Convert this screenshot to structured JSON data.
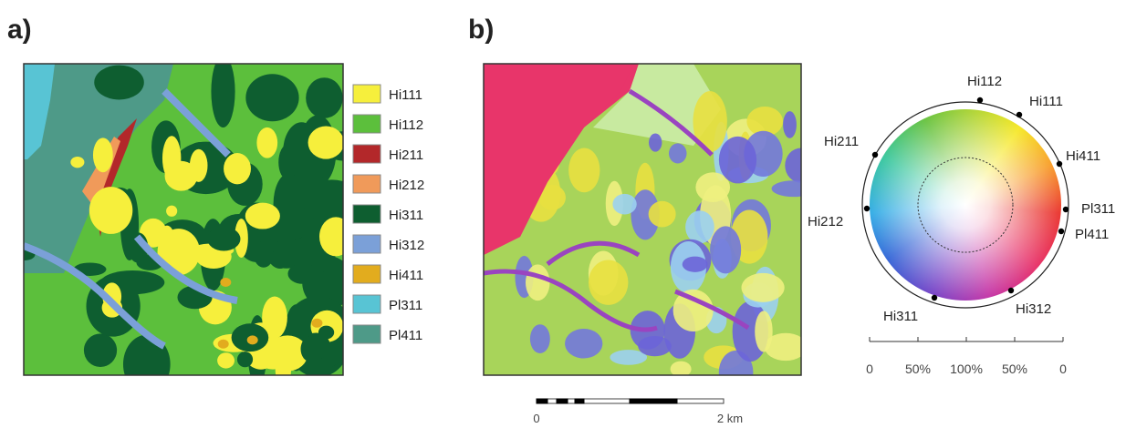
{
  "panels": [
    {
      "label": "a)"
    },
    {
      "label": "b)"
    }
  ],
  "legend": [
    {
      "name": "Hi111",
      "color": "#f6ef3c"
    },
    {
      "name": "Hi112",
      "color": "#5cbf3c"
    },
    {
      "name": "Hi211",
      "color": "#b3282a"
    },
    {
      "name": "Hi212",
      "color": "#f09a5a"
    },
    {
      "name": "Hi311",
      "color": "#0e5e30"
    },
    {
      "name": "Hi312",
      "color": "#7ba0d8"
    },
    {
      "name": "Hi411",
      "color": "#e2ac1e"
    },
    {
      "name": "Pl311",
      "color": "#58c4d4"
    },
    {
      "name": "Pl411",
      "color": "#4e9a88"
    }
  ],
  "wheel": {
    "labels": [
      "Hi112",
      "Hi111",
      "Hi211",
      "Hi411",
      "Pl311",
      "Pl411",
      "Hi212",
      "Hi311",
      "Hi312"
    ],
    "axis_ticks": [
      "0",
      "50%",
      "100%",
      "50%",
      "0"
    ]
  },
  "scale_bar": {
    "labels": [
      "0",
      "2 km"
    ]
  }
}
